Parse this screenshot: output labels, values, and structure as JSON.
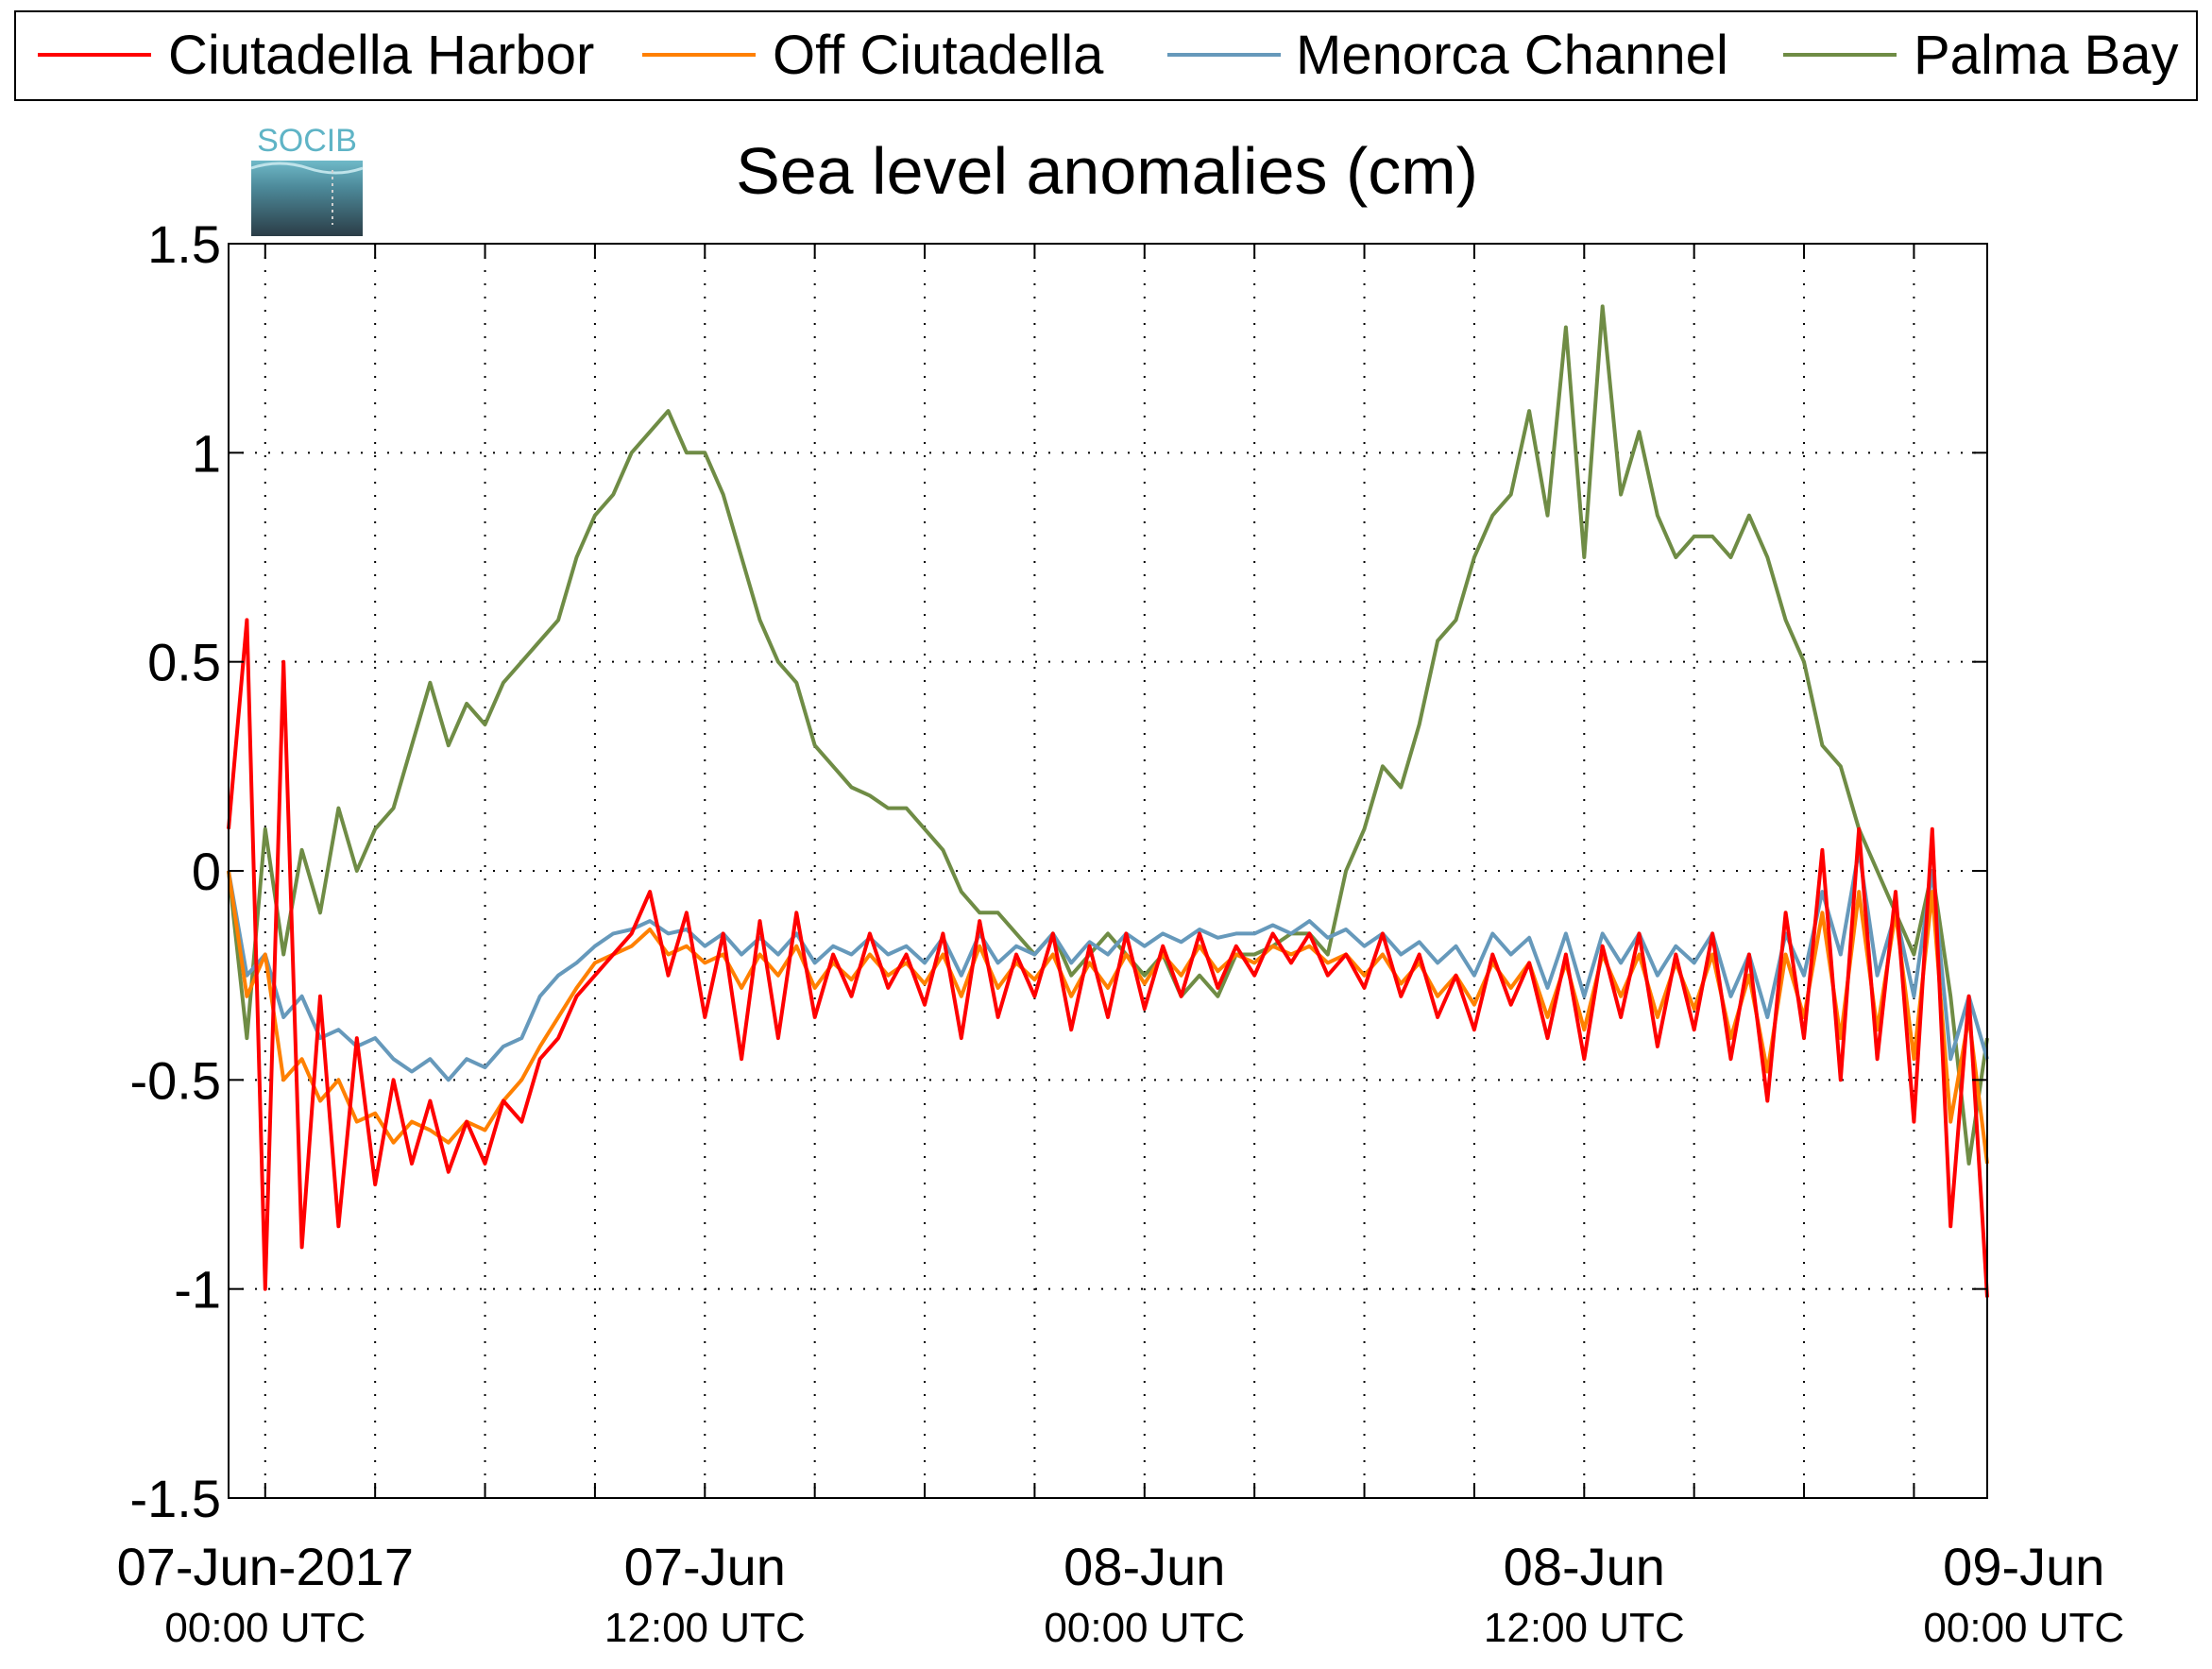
{
  "legend": {
    "items": [
      {
        "label": "Ciutadella Harbor",
        "color": "#ff0000"
      },
      {
        "label": "Off Ciutadella",
        "color": "#ff8000"
      },
      {
        "label": "Menorca Channel",
        "color": "#6699bb"
      },
      {
        "label": "Palma Bay",
        "color": "#6f8c45"
      }
    ]
  },
  "logo": {
    "text": "SOCIB"
  },
  "chart_data": {
    "type": "line",
    "title": "Sea level anomalies (cm)",
    "xlabel": "",
    "ylabel": "",
    "ylim": [
      -1.5,
      1.5
    ],
    "yticks": [
      -1.5,
      -1,
      -0.5,
      0,
      0.5,
      1,
      1.5
    ],
    "ytick_labels": [
      "-1.5",
      "-1",
      "-0.5",
      "0",
      "0.5",
      "1",
      "1.5"
    ],
    "xlim_hours": [
      -1,
      47
    ],
    "xtick_labels": [
      {
        "hour": 0,
        "line1": "07-Jun-2017",
        "line2": "00:00 UTC"
      },
      {
        "hour": 12,
        "line1": "07-Jun",
        "line2": "12:00 UTC"
      },
      {
        "hour": 24,
        "line1": "08-Jun",
        "line2": "00:00 UTC"
      },
      {
        "hour": 36,
        "line1": "08-Jun",
        "line2": "12:00 UTC"
      },
      {
        "hour": 48,
        "line1": "09-Jun",
        "line2": "00:00 UTC"
      }
    ],
    "grid": true,
    "legend_position": "top",
    "series": [
      {
        "name": "Ciutadella Harbor",
        "color": "#ff0000",
        "x": [
          -1,
          -0.5,
          0,
          0.5,
          1,
          1.5,
          2,
          2.5,
          3,
          3.5,
          4,
          4.5,
          5,
          5.5,
          6,
          6.5,
          7,
          7.5,
          8,
          8.5,
          9,
          9.5,
          10,
          10.5,
          11,
          11.5,
          12,
          12.5,
          13,
          13.5,
          14,
          14.5,
          15,
          15.5,
          16,
          16.5,
          17,
          17.5,
          18,
          18.5,
          19,
          19.5,
          20,
          20.5,
          21,
          21.5,
          22,
          22.5,
          23,
          23.5,
          24,
          24.5,
          25,
          25.5,
          26,
          26.5,
          27,
          27.5,
          28,
          28.5,
          29,
          29.5,
          30,
          30.5,
          31,
          31.5,
          32,
          32.5,
          33,
          33.5,
          34,
          34.5,
          35,
          35.5,
          36,
          36.5,
          37,
          37.5,
          38,
          38.5,
          39,
          39.5,
          40,
          40.5,
          41,
          41.5,
          42,
          42.5,
          43,
          43.5,
          44,
          44.5,
          45,
          45.5,
          46,
          46.5,
          47
        ],
        "y": [
          0.1,
          0.6,
          -1.0,
          0.5,
          -0.9,
          -0.3,
          -0.85,
          -0.4,
          -0.75,
          -0.5,
          -0.7,
          -0.55,
          -0.72,
          -0.6,
          -0.7,
          -0.55,
          -0.6,
          -0.45,
          -0.4,
          -0.3,
          -0.25,
          -0.2,
          -0.15,
          -0.05,
          -0.25,
          -0.1,
          -0.35,
          -0.15,
          -0.45,
          -0.12,
          -0.4,
          -0.1,
          -0.35,
          -0.2,
          -0.3,
          -0.15,
          -0.28,
          -0.2,
          -0.32,
          -0.15,
          -0.4,
          -0.12,
          -0.35,
          -0.2,
          -0.3,
          -0.15,
          -0.38,
          -0.18,
          -0.35,
          -0.15,
          -0.33,
          -0.18,
          -0.3,
          -0.15,
          -0.28,
          -0.18,
          -0.25,
          -0.15,
          -0.22,
          -0.15,
          -0.25,
          -0.2,
          -0.28,
          -0.15,
          -0.3,
          -0.2,
          -0.35,
          -0.25,
          -0.38,
          -0.2,
          -0.32,
          -0.22,
          -0.4,
          -0.2,
          -0.45,
          -0.18,
          -0.35,
          -0.15,
          -0.42,
          -0.2,
          -0.38,
          -0.15,
          -0.45,
          -0.2,
          -0.55,
          -0.1,
          -0.4,
          0.05,
          -0.5,
          0.1,
          -0.45,
          -0.05,
          -0.6,
          0.1,
          -0.85,
          -0.3,
          -1.02
        ]
      },
      {
        "name": "Off Ciutadella",
        "color": "#ff8000",
        "x": [
          -1,
          -0.5,
          0,
          0.5,
          1,
          1.5,
          2,
          2.5,
          3,
          3.5,
          4,
          4.5,
          5,
          5.5,
          6,
          6.5,
          7,
          7.5,
          8,
          8.5,
          9,
          9.5,
          10,
          10.5,
          11,
          11.5,
          12,
          12.5,
          13,
          13.5,
          14,
          14.5,
          15,
          15.5,
          16,
          16.5,
          17,
          17.5,
          18,
          18.5,
          19,
          19.5,
          20,
          20.5,
          21,
          21.5,
          22,
          22.5,
          23,
          23.5,
          24,
          24.5,
          25,
          25.5,
          26,
          26.5,
          27,
          27.5,
          28,
          28.5,
          29,
          29.5,
          30,
          30.5,
          31,
          31.5,
          32,
          32.5,
          33,
          33.5,
          34,
          34.5,
          35,
          35.5,
          36,
          36.5,
          37,
          37.5,
          38,
          38.5,
          39,
          39.5,
          40,
          40.5,
          41,
          41.5,
          42,
          42.5,
          43,
          43.5,
          44,
          44.5,
          45,
          45.5,
          46,
          46.5,
          47
        ],
        "y": [
          0.0,
          -0.3,
          -0.2,
          -0.5,
          -0.45,
          -0.55,
          -0.5,
          -0.6,
          -0.58,
          -0.65,
          -0.6,
          -0.62,
          -0.65,
          -0.6,
          -0.62,
          -0.55,
          -0.5,
          -0.42,
          -0.35,
          -0.28,
          -0.22,
          -0.2,
          -0.18,
          -0.14,
          -0.2,
          -0.18,
          -0.22,
          -0.2,
          -0.28,
          -0.2,
          -0.25,
          -0.18,
          -0.28,
          -0.22,
          -0.26,
          -0.2,
          -0.25,
          -0.22,
          -0.27,
          -0.2,
          -0.3,
          -0.18,
          -0.28,
          -0.22,
          -0.26,
          -0.2,
          -0.3,
          -0.22,
          -0.28,
          -0.2,
          -0.27,
          -0.2,
          -0.25,
          -0.18,
          -0.24,
          -0.2,
          -0.22,
          -0.18,
          -0.2,
          -0.18,
          -0.22,
          -0.2,
          -0.25,
          -0.2,
          -0.27,
          -0.22,
          -0.3,
          -0.25,
          -0.32,
          -0.22,
          -0.28,
          -0.22,
          -0.35,
          -0.22,
          -0.38,
          -0.2,
          -0.3,
          -0.2,
          -0.35,
          -0.22,
          -0.33,
          -0.2,
          -0.4,
          -0.25,
          -0.48,
          -0.2,
          -0.35,
          -0.1,
          -0.4,
          -0.05,
          -0.38,
          -0.1,
          -0.45,
          -0.05,
          -0.6,
          -0.35,
          -0.7
        ]
      },
      {
        "name": "Menorca Channel",
        "color": "#6699bb",
        "x": [
          -1,
          -0.5,
          0,
          0.5,
          1,
          1.5,
          2,
          2.5,
          3,
          3.5,
          4,
          4.5,
          5,
          5.5,
          6,
          6.5,
          7,
          7.5,
          8,
          8.5,
          9,
          9.5,
          10,
          10.5,
          11,
          11.5,
          12,
          12.5,
          13,
          13.5,
          14,
          14.5,
          15,
          15.5,
          16,
          16.5,
          17,
          17.5,
          18,
          18.5,
          19,
          19.5,
          20,
          20.5,
          21,
          21.5,
          22,
          22.5,
          23,
          23.5,
          24,
          24.5,
          25,
          25.5,
          26,
          26.5,
          27,
          27.5,
          28,
          28.5,
          29,
          29.5,
          30,
          30.5,
          31,
          31.5,
          32,
          32.5,
          33,
          33.5,
          34,
          34.5,
          35,
          35.5,
          36,
          36.5,
          37,
          37.5,
          38,
          38.5,
          39,
          39.5,
          40,
          40.5,
          41,
          41.5,
          42,
          42.5,
          43,
          43.5,
          44,
          44.5,
          45,
          45.5,
          46,
          46.5,
          47
        ],
        "y": [
          0.0,
          -0.25,
          -0.2,
          -0.35,
          -0.3,
          -0.4,
          -0.38,
          -0.42,
          -0.4,
          -0.45,
          -0.48,
          -0.45,
          -0.5,
          -0.45,
          -0.47,
          -0.42,
          -0.4,
          -0.3,
          -0.25,
          -0.22,
          -0.18,
          -0.15,
          -0.14,
          -0.12,
          -0.15,
          -0.14,
          -0.18,
          -0.15,
          -0.2,
          -0.16,
          -0.2,
          -0.15,
          -0.22,
          -0.18,
          -0.2,
          -0.16,
          -0.2,
          -0.18,
          -0.22,
          -0.16,
          -0.25,
          -0.15,
          -0.22,
          -0.18,
          -0.2,
          -0.15,
          -0.22,
          -0.17,
          -0.2,
          -0.15,
          -0.18,
          -0.15,
          -0.17,
          -0.14,
          -0.16,
          -0.15,
          -0.15,
          -0.13,
          -0.15,
          -0.12,
          -0.16,
          -0.14,
          -0.18,
          -0.15,
          -0.2,
          -0.17,
          -0.22,
          -0.18,
          -0.25,
          -0.15,
          -0.2,
          -0.16,
          -0.28,
          -0.15,
          -0.3,
          -0.15,
          -0.22,
          -0.15,
          -0.25,
          -0.18,
          -0.22,
          -0.15,
          -0.3,
          -0.2,
          -0.35,
          -0.15,
          -0.25,
          -0.05,
          -0.2,
          0.05,
          -0.25,
          -0.1,
          -0.3,
          0.0,
          -0.45,
          -0.3,
          -0.45
        ]
      },
      {
        "name": "Palma Bay",
        "color": "#6f8c45",
        "x": [
          -1,
          -0.5,
          0,
          0.5,
          1,
          1.5,
          2,
          2.5,
          3,
          3.5,
          4,
          4.5,
          5,
          5.5,
          6,
          6.5,
          7,
          7.5,
          8,
          8.5,
          9,
          9.5,
          10,
          10.5,
          11,
          11.5,
          12,
          12.5,
          13,
          13.5,
          14,
          14.5,
          15,
          15.5,
          16,
          16.5,
          17,
          17.5,
          18,
          18.5,
          19,
          19.5,
          20,
          20.5,
          21,
          21.5,
          22,
          22.5,
          23,
          23.5,
          24,
          24.5,
          25,
          25.5,
          26,
          26.5,
          27,
          27.5,
          28,
          28.5,
          29,
          29.5,
          30,
          30.5,
          31,
          31.5,
          32,
          32.5,
          33,
          33.5,
          34,
          34.5,
          35,
          35.5,
          36,
          36.5,
          37,
          37.5,
          38,
          38.5,
          39,
          39.5,
          40,
          40.5,
          41,
          41.5,
          42,
          42.5,
          43,
          43.5,
          44,
          44.5,
          45,
          45.5,
          46,
          46.5,
          47
        ],
        "y": [
          0.0,
          -0.4,
          0.1,
          -0.2,
          0.05,
          -0.1,
          0.15,
          0.0,
          0.1,
          0.15,
          0.3,
          0.45,
          0.3,
          0.4,
          0.35,
          0.45,
          0.5,
          0.55,
          0.6,
          0.75,
          0.85,
          0.9,
          1.0,
          1.05,
          1.1,
          1.0,
          1.0,
          0.9,
          0.75,
          0.6,
          0.5,
          0.45,
          0.3,
          0.25,
          0.2,
          0.18,
          0.15,
          0.15,
          0.1,
          0.05,
          -0.05,
          -0.1,
          -0.1,
          -0.15,
          -0.2,
          -0.15,
          -0.25,
          -0.2,
          -0.15,
          -0.2,
          -0.25,
          -0.2,
          -0.3,
          -0.25,
          -0.3,
          -0.2,
          -0.2,
          -0.18,
          -0.15,
          -0.15,
          -0.2,
          0.0,
          0.1,
          0.25,
          0.2,
          0.35,
          0.55,
          0.6,
          0.75,
          0.85,
          0.9,
          1.1,
          0.85,
          1.3,
          0.75,
          1.35,
          0.9,
          1.05,
          0.85,
          0.75,
          0.8,
          0.8,
          0.75,
          0.85,
          0.75,
          0.6,
          0.5,
          0.3,
          0.25,
          0.1,
          0.0,
          -0.1,
          -0.2,
          0.0,
          -0.3,
          -0.7,
          -0.4
        ]
      }
    ]
  }
}
